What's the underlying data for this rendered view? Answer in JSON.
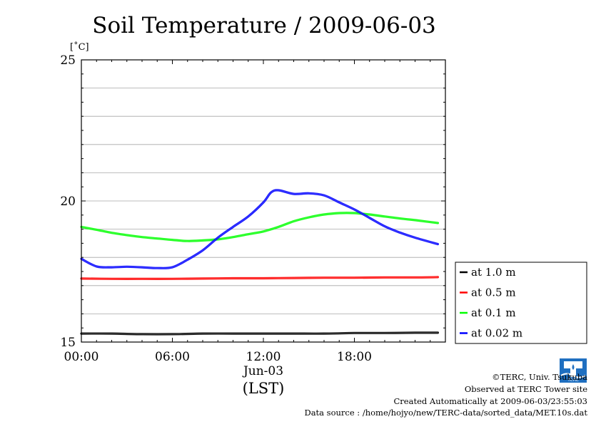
{
  "chart_data": {
    "type": "line",
    "title": "Soil Temperature / 2009-06-03",
    "ylabel": "[˚C]",
    "xlabel": "(LST)",
    "date_label": "Jun-03",
    "ylim": [
      15,
      25
    ],
    "xlim": [
      "00:00",
      "24:00"
    ],
    "x_ticks": [
      "00:00",
      "06:00",
      "12:00",
      "18:00"
    ],
    "y_ticks": [
      "15",
      "20",
      "25"
    ],
    "grid": true,
    "legend_position": "right",
    "series": [
      {
        "name": "at 1.0 m",
        "color": "#000000",
        "x": [
          "00:00",
          "02:00",
          "04:00",
          "06:00",
          "08:00",
          "10:00",
          "12:00",
          "14:00",
          "16:00",
          "18:00",
          "20:00",
          "22:00",
          "23:30"
        ],
        "values": [
          15.3,
          15.3,
          15.28,
          15.28,
          15.3,
          15.3,
          15.3,
          15.3,
          15.3,
          15.32,
          15.32,
          15.33,
          15.33
        ]
      },
      {
        "name": "at 0.5 m",
        "color": "#ff0000",
        "x": [
          "00:00",
          "02:00",
          "04:00",
          "06:00",
          "08:00",
          "10:00",
          "12:00",
          "14:00",
          "16:00",
          "18:00",
          "20:00",
          "22:00",
          "23:30"
        ],
        "values": [
          17.25,
          17.24,
          17.24,
          17.24,
          17.25,
          17.26,
          17.26,
          17.27,
          17.28,
          17.28,
          17.29,
          17.29,
          17.3
        ]
      },
      {
        "name": "at 0.1 m",
        "color": "#00ff00",
        "x": [
          "00:00",
          "01:00",
          "02:00",
          "03:00",
          "04:00",
          "05:00",
          "06:00",
          "07:00",
          "08:00",
          "09:00",
          "10:00",
          "11:00",
          "12:00",
          "13:00",
          "14:00",
          "15:00",
          "16:00",
          "17:00",
          "18:00",
          "19:00",
          "20:00",
          "21:00",
          "22:00",
          "23:30"
        ],
        "values": [
          19.08,
          18.98,
          18.87,
          18.79,
          18.72,
          18.67,
          18.62,
          18.58,
          18.6,
          18.64,
          18.72,
          18.82,
          18.92,
          19.08,
          19.28,
          19.42,
          19.52,
          19.57,
          19.57,
          19.52,
          19.45,
          19.38,
          19.32,
          19.22
        ]
      },
      {
        "name": "at 0.02 m",
        "color": "#0000ff",
        "x": [
          "00:00",
          "01:00",
          "02:00",
          "03:00",
          "04:00",
          "05:00",
          "06:00",
          "07:00",
          "08:00",
          "09:00",
          "10:00",
          "11:00",
          "12:00",
          "12:30",
          "13:00",
          "14:00",
          "15:00",
          "16:00",
          "17:00",
          "18:00",
          "19:00",
          "20:00",
          "21:00",
          "22:00",
          "23:30"
        ],
        "values": [
          17.95,
          17.68,
          17.65,
          17.67,
          17.65,
          17.62,
          17.65,
          17.92,
          18.25,
          18.7,
          19.08,
          19.45,
          19.95,
          20.3,
          20.38,
          20.25,
          20.27,
          20.2,
          19.95,
          19.7,
          19.4,
          19.1,
          18.88,
          18.7,
          18.47
        ]
      }
    ]
  },
  "footer": {
    "copyright": "©TERC, Univ. Tsukuba",
    "observed": "Observed at TERC Tower site",
    "created": "Created Automatically at 2009-06-03/23:55:03",
    "source": "Data source : /home/hojyo/new/TERC-data/sorted_data/MET.10s.dat",
    "logo_text": "TERC"
  }
}
